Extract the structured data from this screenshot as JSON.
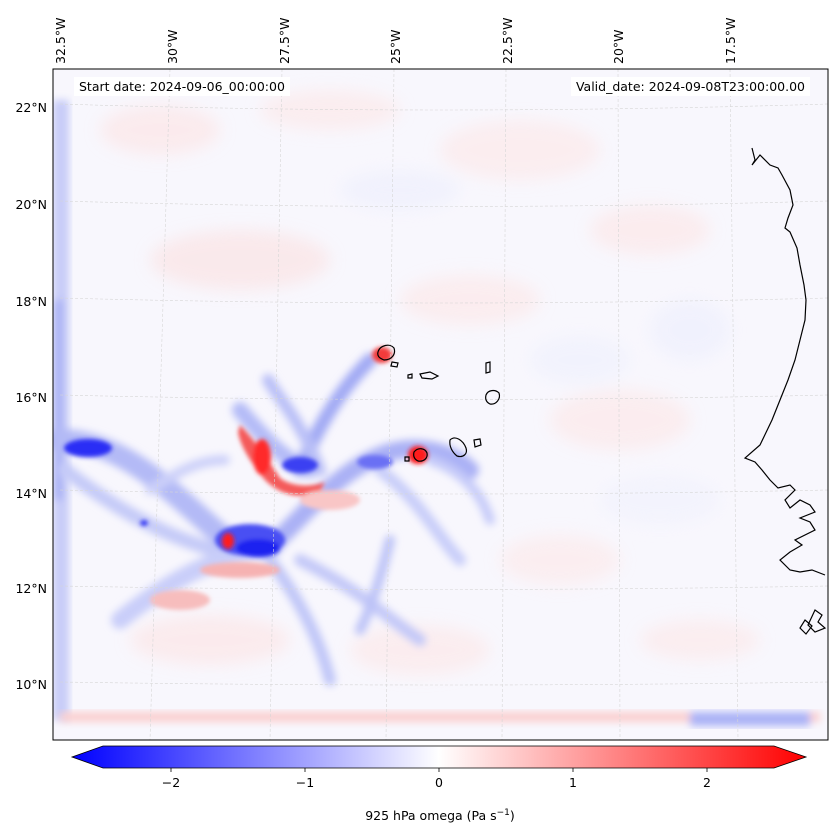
{
  "header": {
    "start_date": "Start date: 2024-09-06_00:00:00",
    "valid_date": "Valid_date: 2024-09-08T23:00:00.00"
  },
  "map": {
    "variable": "925 hPa omega",
    "longitude_labels": [
      "32.5°W",
      "30°W",
      "27.5°W",
      "25°W",
      "22.5°W",
      "20°W",
      "17.5°W"
    ],
    "latitude_labels": [
      "22°N",
      "20°N",
      "18°N",
      "16°N",
      "14°N",
      "12°N",
      "10°N"
    ]
  },
  "colorbar": {
    "label": "925 hPa omega (Pa s",
    "label_exponent": "−1",
    "label_suffix": ")",
    "tick_labels": [
      "−2",
      "−1",
      "0",
      "1",
      "2"
    ],
    "range": [
      -2.5,
      2.5
    ],
    "colormap": "bwr",
    "colors": {
      "low": "#0000ff",
      "mid": "#ffffff",
      "high": "#ff0000"
    }
  },
  "features": [
    {
      "name": "cape-verde-islands"
    },
    {
      "name": "west-african-coastline"
    },
    {
      "name": "tropical-disturbance-vorticity"
    }
  ]
}
